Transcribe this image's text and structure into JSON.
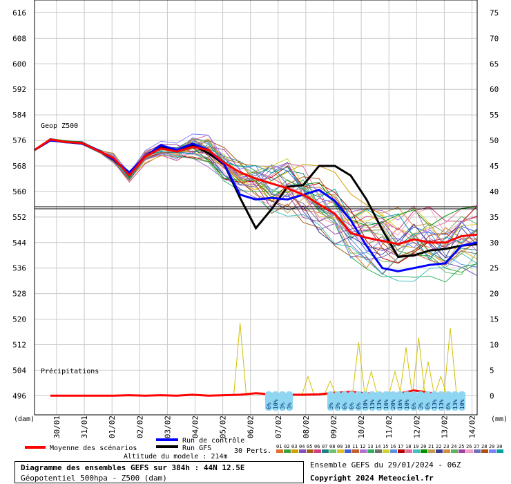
{
  "chart_data": {
    "type": "line",
    "title": "Diagramme des ensembles GEFS sur 384h : 44N 12.5E",
    "subtitle": "Géopotentiel 500hpa - Z500 (dam)",
    "left_axis": {
      "unit": "(dam)",
      "min": 490,
      "max": 620,
      "ticks": [
        616,
        608,
        600,
        592,
        584,
        576,
        568,
        560,
        552,
        544,
        536,
        528,
        520,
        512,
        504,
        496
      ]
    },
    "right_axis": {
      "unit": "(mm)",
      "ticks": [
        75,
        70,
        65,
        60,
        55,
        50,
        45,
        40,
        35,
        30,
        25,
        20,
        15,
        10,
        5,
        0
      ]
    },
    "x_labels": [
      "30/01",
      "31/01",
      "01/02",
      "02/02",
      "03/02",
      "04/02",
      "05/02",
      "06/02",
      "07/02",
      "08/02",
      "09/02",
      "10/02",
      "11/02",
      "12/02",
      "13/02",
      "14/02"
    ],
    "reference_line": 552,
    "annotations": {
      "geop": "Geop Z500",
      "precip": "Précipitations"
    },
    "series": [
      {
        "name": "Moyenne des scénarios",
        "color": "#ff0000",
        "values": [
          573,
          576.3,
          575.5,
          575.2,
          572.8,
          570.5,
          565,
          571,
          573.5,
          572.5,
          574,
          573,
          569,
          566,
          564,
          562.5,
          561,
          559,
          556,
          553,
          547,
          545.5,
          544.5,
          543.5,
          545,
          544,
          544,
          546,
          546.5
        ]
      },
      {
        "name": "Run de contrôle",
        "color": "#0000ff",
        "values": [
          573,
          576,
          575.5,
          575,
          573,
          570,
          566,
          571,
          574.5,
          573,
          575,
          573,
          568.5,
          559,
          557.5,
          558,
          557.5,
          559,
          560.5,
          557,
          551,
          543,
          536,
          535,
          536,
          537,
          537.5,
          543,
          544
        ]
      },
      {
        "name": "Run GFS",
        "color": "#000000",
        "values": [
          573,
          576,
          575.5,
          575,
          573,
          570,
          565.5,
          571,
          574,
          572.5,
          574.5,
          572,
          568.5,
          558,
          548.5,
          554.5,
          561.5,
          562,
          568,
          568,
          565,
          557.5,
          548,
          539.5,
          540,
          541.5,
          542,
          543,
          543.5
        ]
      }
    ],
    "precip_mean": [
      0,
      0,
      0,
      0,
      0,
      0.1,
      0,
      0.1,
      0,
      0.2,
      0,
      0.1,
      0.2,
      0.5,
      0.3,
      0.2,
      0.2,
      0.3,
      0.6,
      0.8,
      0.5,
      0.3,
      0.4,
      1.1,
      0.6,
      0.2,
      0.1
    ],
    "precip_spikes": [
      {
        "x": 13.0,
        "mm": 15
      },
      {
        "x": 20.5,
        "mm": 11
      },
      {
        "x": 23.5,
        "mm": 10
      },
      {
        "x": 21.3,
        "mm": 5
      },
      {
        "x": 24.3,
        "mm": 12
      },
      {
        "x": 24.9,
        "mm": 7
      },
      {
        "x": 26.3,
        "mm": 14
      },
      {
        "x": 25.7,
        "mm": 4
      },
      {
        "x": 22.8,
        "mm": 5
      },
      {
        "x": 17.3,
        "mm": 4
      },
      {
        "x": 18.7,
        "mm": 3
      }
    ],
    "ensemble_count": 30,
    "snow_labels_a": [
      "6%",
      "10%",
      "3%",
      "3%"
    ],
    "snow_labels_b": [
      "3%",
      "3%",
      "6%",
      "6%",
      "6%",
      "10%",
      "13%",
      "13%",
      "16%",
      "20%",
      "16%",
      "10%",
      "6%",
      "3%",
      "6%",
      "13%",
      "13%",
      "6%",
      "13%",
      "10%"
    ],
    "member_colors": [
      "#e07030",
      "#40a040",
      "#d4a000",
      "#8050c0",
      "#a06020",
      "#d04080",
      "#208080",
      "#70c070",
      "#e0c020",
      "#4060d0",
      "#c06030",
      "#b070d0",
      "#30b060",
      "#707070",
      "#d0d030",
      "#6090e0",
      "#b00000",
      "#e070a0",
      "#40c0c0",
      "#009000",
      "#c0a050",
      "#404090",
      "#d09040",
      "#60b060",
      "#a040a0",
      "#f0a0c0",
      "#7070c0",
      "#b05010",
      "#8080ff",
      "#00a0a0"
    ]
  },
  "legend": {
    "mean": "Moyenne des scénarios",
    "control": "Run de contrôle",
    "gfs": "Run GFS",
    "perts": "30 Perts.",
    "numbers": [
      "01",
      "02",
      "03",
      "04",
      "05",
      "06",
      "07",
      "08",
      "09",
      "10",
      "11",
      "12",
      "13",
      "14",
      "15",
      "16",
      "17",
      "18",
      "19",
      "20",
      "21",
      "22",
      "23",
      "24",
      "25",
      "26",
      "27",
      "28",
      "29",
      "30"
    ]
  },
  "footer": {
    "altitude": "Altitude du modele : 214m",
    "title": "Diagramme des ensembles GEFS sur 384h : 44N 12.5E",
    "subtitle": "Géopotentiel 500hpa - Z500 (dam)",
    "run": "Ensemble GEFS du 29/01/2024 - 06Z",
    "copyright": "Copyright 2024 Meteociel.fr"
  }
}
